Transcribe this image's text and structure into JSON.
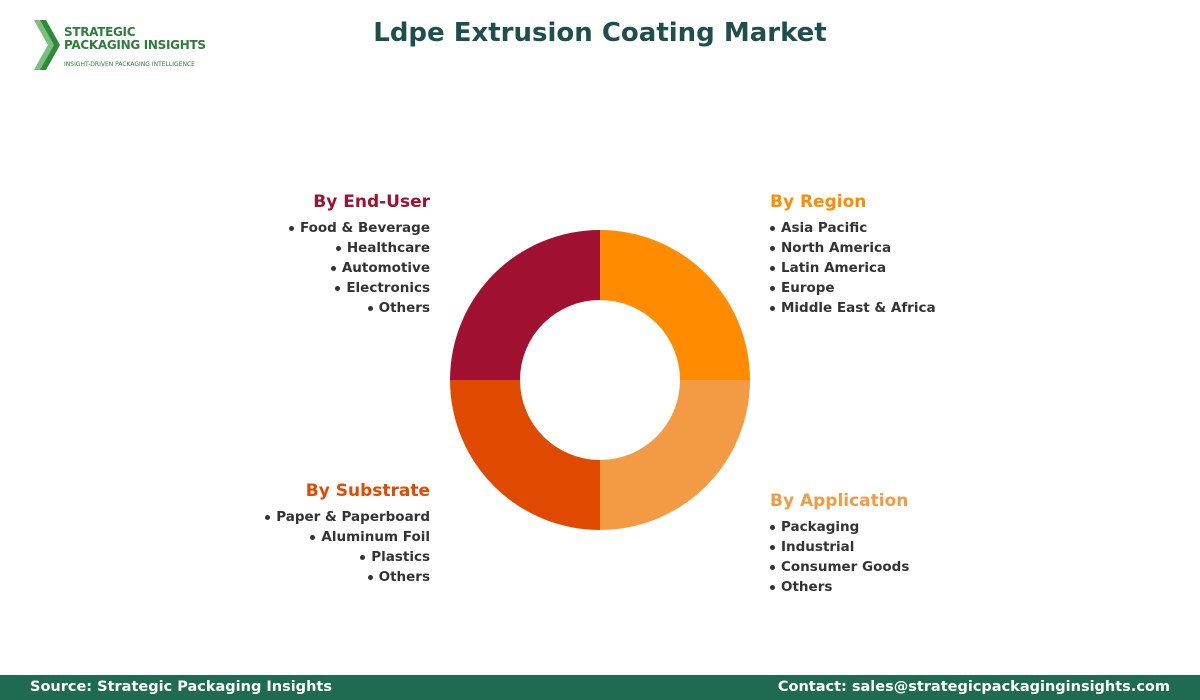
{
  "logo": {
    "name_line1": "STRATEGIC",
    "name_line2": "PACKAGING INSIGHTS",
    "tagline": "INSIGHT-DRIVEN PACKAGING INTELLIGENCE"
  },
  "header": {
    "title": "Ldpe Extrusion Coating Market"
  },
  "segments": [
    {
      "title": "By End-User",
      "items": [
        "Food & Beverage",
        "Healthcare",
        "Automotive",
        "Electronics",
        "Others"
      ]
    },
    {
      "title": "By Region",
      "items": [
        "Asia Pacific",
        "North America",
        "Latin America",
        "Europe",
        "Middle East & Africa"
      ]
    },
    {
      "title": "By Substrate",
      "items": [
        "Paper & Paperboard",
        "Aluminum Foil",
        "Plastics",
        "Others"
      ]
    },
    {
      "title": "By Application",
      "items": [
        "Packaging",
        "Industrial",
        "Consumer Goods",
        "Others"
      ]
    }
  ],
  "footer": {
    "source": "Source: Strategic Packaging Insights",
    "contact": "Contact: sales@strategicpackaginginsights.com"
  }
}
